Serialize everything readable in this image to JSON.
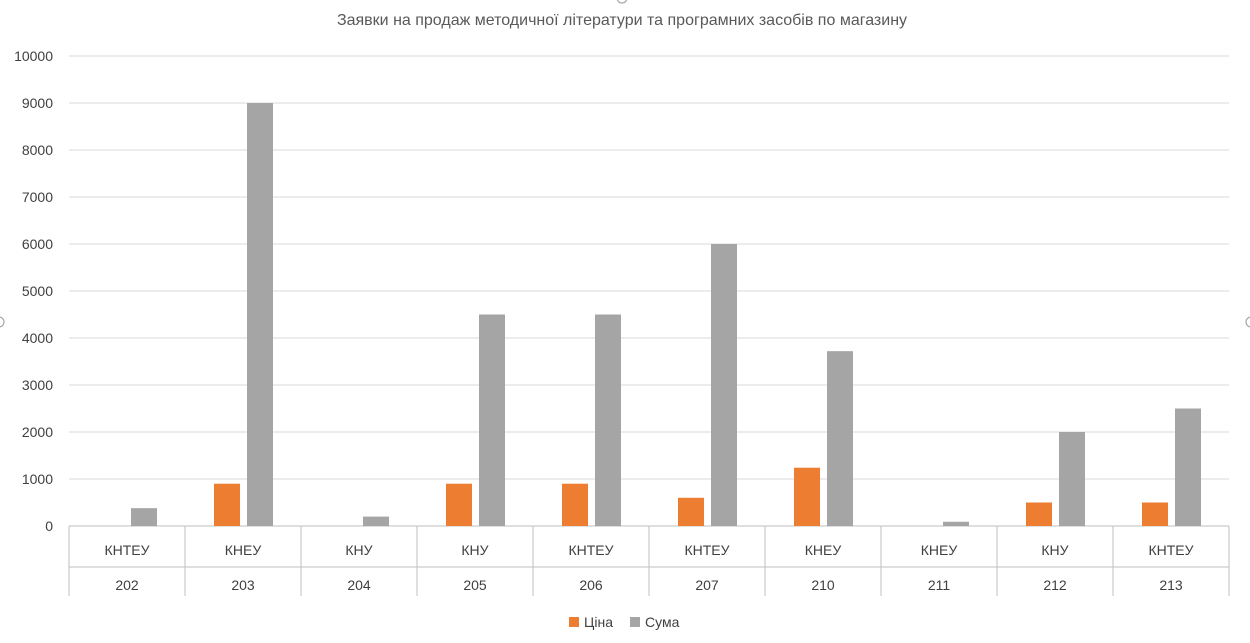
{
  "chart_data": {
    "type": "bar",
    "title": "Заявки на продаж методичної літератури та програмних засобів по магазину",
    "xlabel": "",
    "ylabel": "",
    "ylim": [
      0,
      10000
    ],
    "yticks": [
      "0",
      "1000",
      "2000",
      "3000",
      "4000",
      "5000",
      "6000",
      "7000",
      "8000",
      "9000",
      "10000"
    ],
    "categories": [
      {
        "level1": "КНТЕУ",
        "level2": "202"
      },
      {
        "level1": "КНЕУ",
        "level2": "203"
      },
      {
        "level1": "КНУ",
        "level2": "204"
      },
      {
        "level1": "КНУ",
        "level2": "205"
      },
      {
        "level1": "КНТЕУ",
        "level2": "206"
      },
      {
        "level1": "КНТЕУ",
        "level2": "207"
      },
      {
        "level1": "КНЕУ",
        "level2": "210"
      },
      {
        "level1": "КНЕУ",
        "level2": "211"
      },
      {
        "level1": "КНУ",
        "level2": "212"
      },
      {
        "level1": "КНТЕУ",
        "level2": "213"
      }
    ],
    "series": [
      {
        "name": "Ціна",
        "color": "#ed7d31",
        "values": [
          0,
          900,
          0,
          900,
          900,
          600,
          1240,
          0,
          500,
          500
        ]
      },
      {
        "name": "Сума",
        "color": "#a5a5a5",
        "values": [
          380,
          9000,
          200,
          4500,
          4500,
          6000,
          3720,
          90,
          2000,
          2500
        ]
      }
    ],
    "grid": true,
    "legend_position": "bottom"
  }
}
